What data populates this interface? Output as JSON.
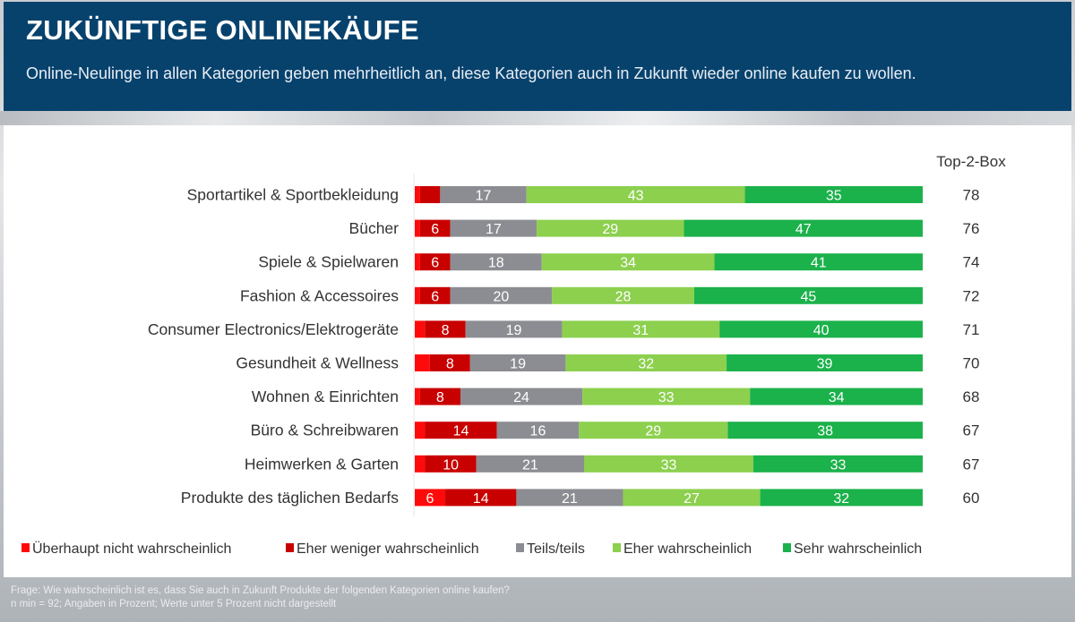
{
  "header": {
    "title": "ZUKÜNFTIGE ONLINEKÄUFE",
    "subtitle": "Online-Neulinge in allen Kategorien geben mehrheitlich an, diese Kategorien auch in Zukunft wieder online kaufen zu wollen."
  },
  "footer": {
    "line1": "Frage: Wie wahrscheinlich ist es, dass Sie auch in Zukunft Produkte der folgenden Kategorien online kaufen?",
    "line2": "n min = 92; Angaben in Prozent; Werte unter 5 Prozent nicht dargestellt"
  },
  "chart_data": {
    "type": "bar",
    "orientation": "horizontal",
    "stacked": true,
    "title": "ZUKÜNFTIGE ONLINEKÄUFE",
    "xlabel": "",
    "ylabel": "",
    "xlim": [
      0,
      100
    ],
    "grid": false,
    "legend_position": "bottom",
    "label_threshold": 5,
    "categories": [
      "Sportartikel & Sportbekleidung",
      "Bücher",
      "Spiele & Spielwaren",
      "Fashion & Accessoires",
      "Consumer Electronics/Elektrogeräte",
      "Gesundheit & Wellness",
      "Wohnen & Einrichten",
      "Büro & Schreibwaren",
      "Heimwerken & Garten",
      "Produkte des täglichen Bedarfs"
    ],
    "series": [
      {
        "name": "Überhaupt nicht wahrscheinlich",
        "color": "#ff0a0a",
        "values": [
          1,
          1,
          1,
          1,
          2,
          3,
          1,
          2,
          2,
          6
        ]
      },
      {
        "name": "Eher weniger wahrscheinlich",
        "color": "#c80000",
        "values": [
          4,
          6,
          6,
          6,
          8,
          8,
          8,
          14,
          10,
          14
        ]
      },
      {
        "name": "Teils/teils",
        "color": "#8c8d92",
        "values": [
          17,
          17,
          18,
          20,
          19,
          19,
          24,
          16,
          21,
          21
        ]
      },
      {
        "name": "Eher wahrscheinlich",
        "color": "#8cd04e",
        "values": [
          43,
          29,
          34,
          28,
          31,
          32,
          33,
          29,
          33,
          27
        ]
      },
      {
        "name": "Sehr wahrscheinlich",
        "color": "#1bb14b",
        "values": [
          35,
          47,
          41,
          45,
          40,
          39,
          34,
          38,
          33,
          32
        ]
      }
    ],
    "top2box": {
      "label": "Top-2-Box",
      "values": [
        78,
        76,
        74,
        72,
        71,
        70,
        68,
        67,
        67,
        60
      ]
    }
  }
}
